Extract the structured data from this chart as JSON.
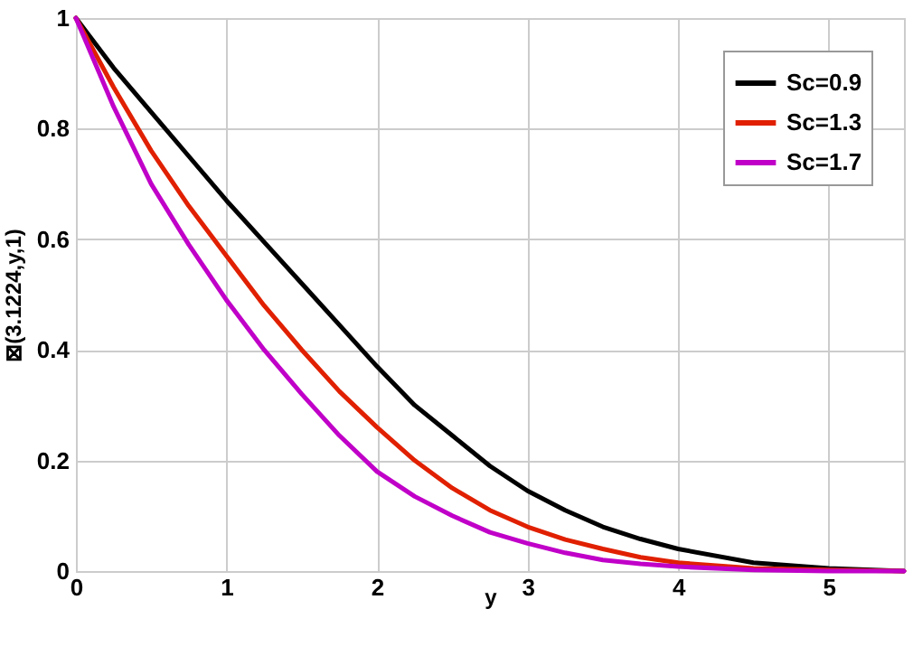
{
  "chart_data": {
    "type": "line",
    "xlabel": "y",
    "ylabel": "⊠(3.1224,y,1)",
    "x": [
      0,
      0.25,
      0.5,
      0.75,
      1,
      1.25,
      1.5,
      1.75,
      2,
      2.25,
      2.5,
      2.75,
      3,
      3.25,
      3.5,
      3.75,
      4,
      4.5,
      5,
      5.5
    ],
    "series": [
      {
        "name": "Sc=0.9",
        "color": "#000000",
        "values": [
          1,
          0.91,
          0.83,
          0.75,
          0.67,
          0.595,
          0.52,
          0.445,
          0.37,
          0.3,
          0.245,
          0.19,
          0.145,
          0.11,
          0.08,
          0.058,
          0.04,
          0.015,
          0.005,
          0
        ]
      },
      {
        "name": "Sc=1.3",
        "color": "#e02000",
        "values": [
          1,
          0.875,
          0.76,
          0.66,
          0.57,
          0.48,
          0.4,
          0.325,
          0.26,
          0.2,
          0.15,
          0.11,
          0.08,
          0.057,
          0.04,
          0.025,
          0.015,
          0.005,
          0.002,
          0
        ]
      },
      {
        "name": "Sc=1.7",
        "color": "#c000c8",
        "values": [
          1,
          0.84,
          0.7,
          0.59,
          0.49,
          0.4,
          0.32,
          0.245,
          0.18,
          0.135,
          0.1,
          0.07,
          0.05,
          0.033,
          0.02,
          0.013,
          0.008,
          0.002,
          0,
          0
        ]
      }
    ],
    "xlim": [
      0,
      5.5
    ],
    "ylim": [
      0,
      1
    ],
    "xticks": [
      0,
      1,
      2,
      3,
      4,
      5
    ],
    "yticks": [
      0,
      0.2,
      0.4,
      0.6,
      0.8,
      1
    ],
    "grid": true,
    "legend": "top right",
    "line_style": "solid",
    "marker": "none"
  }
}
